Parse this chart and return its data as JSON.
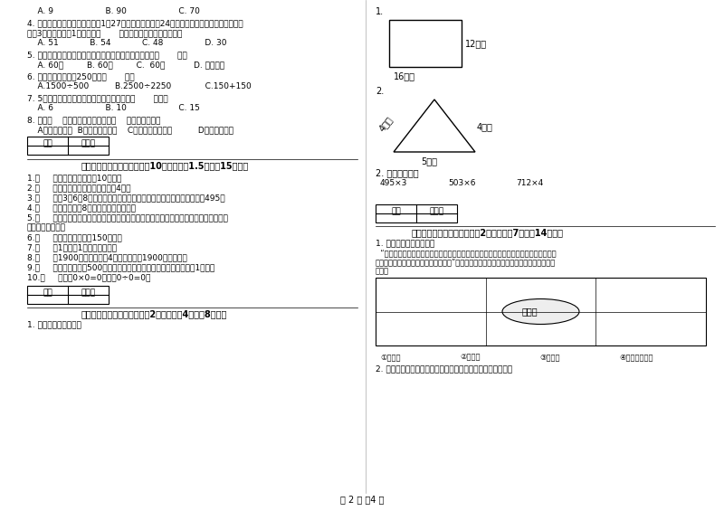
{
  "bg_color": "#ffffff",
  "text_color": "#000000",
  "page_width": 8.0,
  "page_height": 5.65,
  "left_content": {
    "top_answers": "    A. 9                    B. 90                    C. 70",
    "q4": "4. 学校开设两个兴趣小组，三（1）27人参加书画小组，24人参加棋艺小组，两个小组都参加",
    "q4_2": "的有3人，那么三（1）一共有（       ）人参加了书画和棋艺小组。",
    "q4_ans": "    A. 51            B. 54            C. 48                D. 30",
    "q5": "5. 时针从上一个数字到相邻的下一个数字，经过的时间是（       ）。",
    "q5_ans": "    A. 60秒         B. 60分         C.  60时           D. 无法确定",
    "q6": "6. 下面的结果刚好是250的是（       ）。",
    "q6_ans": "    A.1500÷500          B.2500÷2250             C.150+150",
    "q7": "7. 5名同学打乒乓球，每两人打一场，共要打（       ）场。",
    "q7_ans": "    A. 6                    B. 10                    C. 15",
    "q8": "8. 明天（    ）会下雨，今天下午我（    ）游遍全世界。",
    "q8_ans": "    A、一定，可能  B、可能，不可能    C、不可能，不可能          D、可能，可能",
    "section3_title": "三、仔细推敲，正确判断（共10小题，每题1.5分，共15分）。",
    "judge_items": [
      "1.（     ）小明家客厅面积是10公顼。",
      "2.（     ）正方形的周长是它的边长的4倍。",
      "3.（     ）用3、6、8这三个数字组成的最大三位数与最小三位数，它们相差495。",
      "4.（     ）一个两位敗8，积一定也是两为数。",
      "5.（     ）用同一条铁丝先围成一个最大的正方形，再围成一个最大的长方形，长方形和正",
      "方形的周长相等。",
      "6.（     ）一本故事书约重150千克。",
      "7.（     ）1吞棉与1吞锁花一样重。",
      "8.（     ）1900年的年份数是4的倍数，所以1900年是闰年。",
      "9.（     ）小明家离学校500米，他每天上学、回家，一个来回一共要走1千米。",
      "10.（     ）因为0×0=0，所以0÷0=0。"
    ],
    "section4_title": "四、看清题目，细心计算（共2小题，每题4分，共8分）。",
    "section4_q1": "1. 求下面图形的周长。"
  },
  "right_content": {
    "label1": "1.",
    "rect_label_right": "12厘米",
    "rect_label_bottom": "16厘米",
    "label2": "2.",
    "tri_left_label": "4分米",
    "tri_right_label": "4分米",
    "tri_bottom_label": "5分米",
    "section2_label": "2. 估算并计算。",
    "calc1": "495×3",
    "calc2": "503×6",
    "calc3": "712×4",
    "section5_title": "五、认真思考，综合能力（共2小题，每题7分，共14分）。",
    "map_text": "假山石",
    "legend1": "①童装区",
    "legend2": "②男装区",
    "legend3": "③女装区",
    "legend4": "④中老年服装区",
    "section5_q1": "1. 仔细观察，认真填空。",
    "section5_desc": "  “走进服装城大门，正北面是假山石和童装区，假山的东面是中老年服装区，假山的西北",
    "section5_desc2": "边是男装区，男装区的南边是女装区。”根据以上的描述请你把服装城的序号标在适当的位",
    "section5_desc3": "置上。",
    "section5_q2": "2. 下面是气温自测仪上记录的某天四个不同时间的气温情况："
  },
  "scoring_box": {
    "label1": "得分",
    "label2": "评卷人"
  },
  "page_footer": "第 2 页 共4 页"
}
